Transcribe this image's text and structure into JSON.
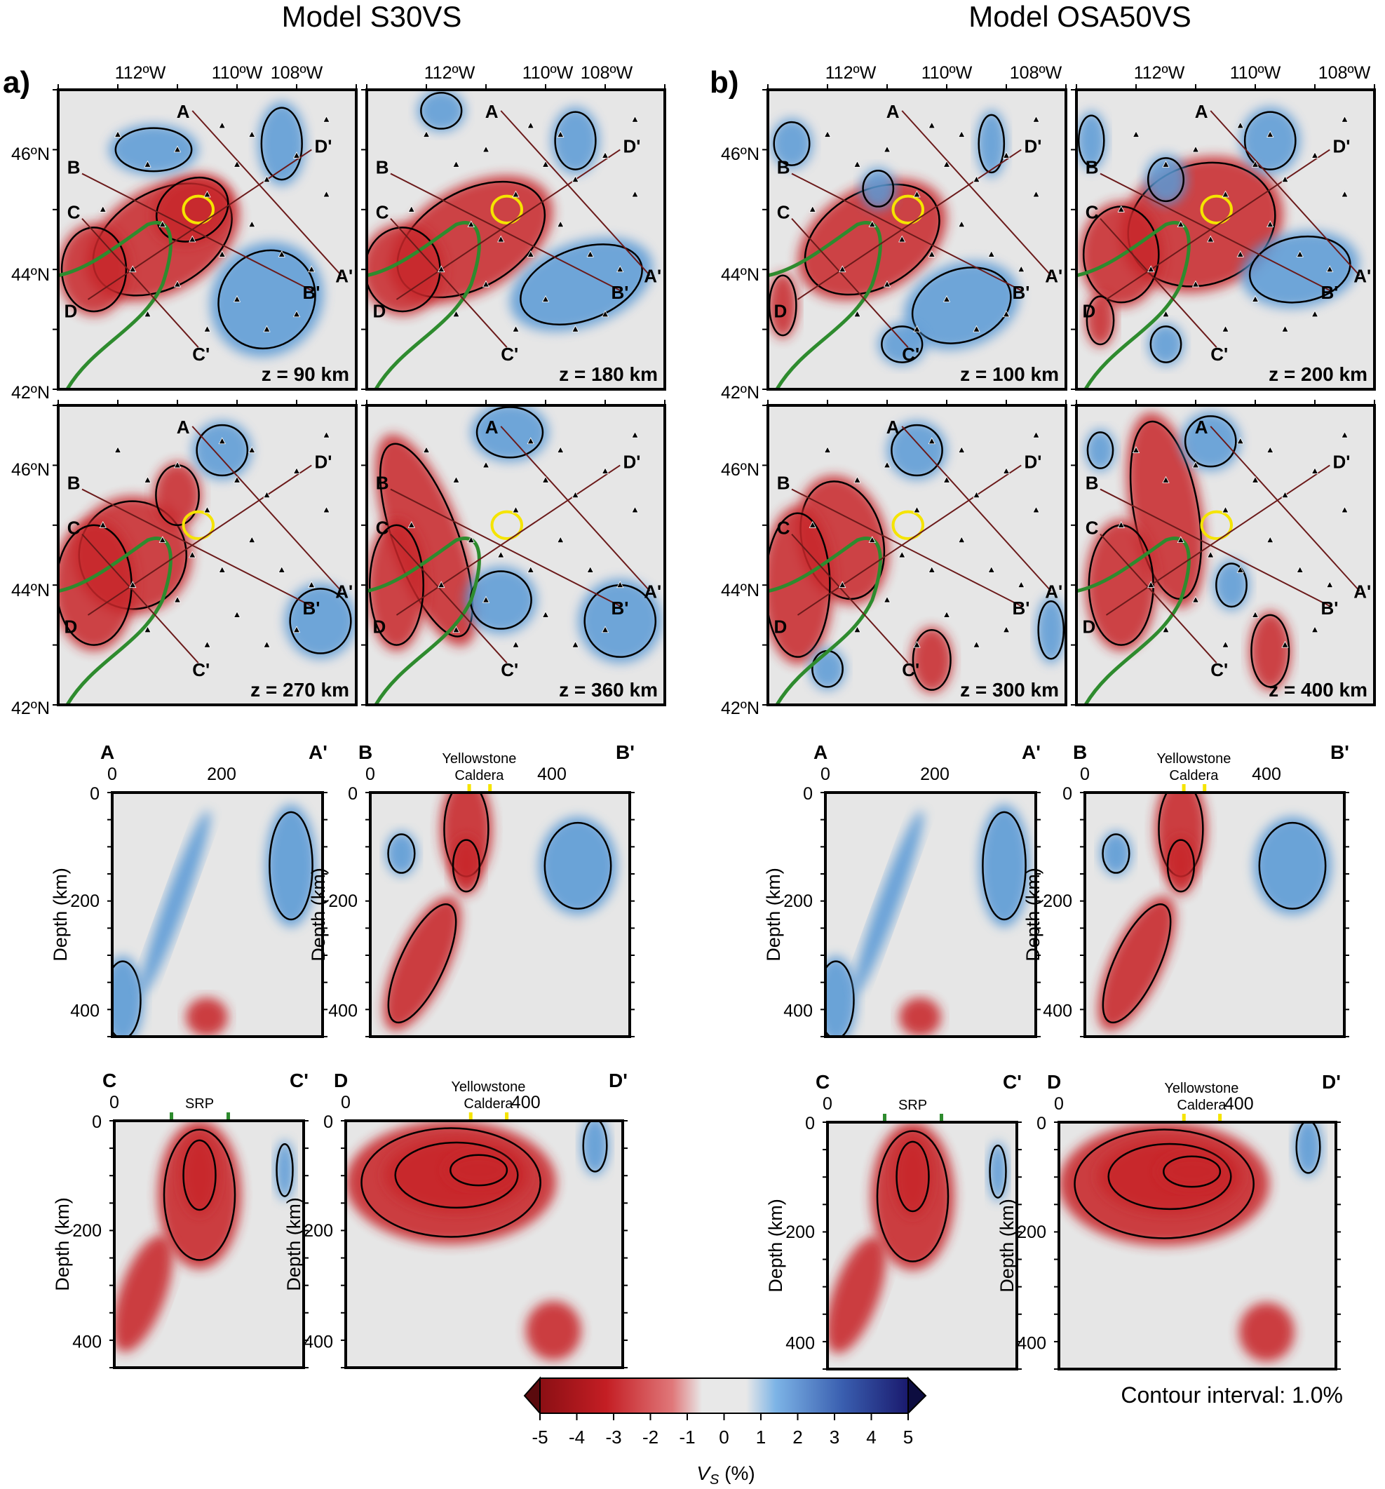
{
  "titles": {
    "left": "Model S30VS",
    "right": "Model OSA50VS"
  },
  "panel_labels": {
    "a": "a)",
    "b": "b)"
  },
  "lon_ticks": [
    "112ºW",
    "110ºW",
    "108ºW"
  ],
  "lat_ticks": [
    "46ºN",
    "44ºN",
    "42ºN"
  ],
  "map_point_labels": {
    "A": "A",
    "B": "B",
    "C": "C",
    "D": "D",
    "Ap": "A'",
    "Bp": "B'",
    "Cp": "C'",
    "Dp": "D'"
  },
  "depth_labels": {
    "s30_1": "z = 90 km",
    "s30_2": "z = 180 km",
    "s30_3": "z = 270 km",
    "s30_4": "z = 360 km",
    "osa_1": "z = 100 km",
    "osa_2": "z = 200 km",
    "osa_3": "z = 300 km",
    "osa_4": "z = 400 km"
  },
  "cross_sections": {
    "ylabel": "Depth (km)",
    "depth_ticks": [
      "0",
      "200",
      "400"
    ],
    "dist_tick_200": "200",
    "dist_tick_400": "400",
    "dist_tick_0": "0",
    "yellowstone_line1": "Yellowstone",
    "yellowstone_line2": "Caldera",
    "srp": "SRP"
  },
  "colorbar": {
    "ticks": [
      "-5",
      "-4",
      "-3",
      "-2",
      "-1",
      "0",
      "1",
      "2",
      "3",
      "4",
      "5"
    ],
    "label_main": "V",
    "label_sub": "S",
    "label_unit": " (%)",
    "contour_note": "Contour interval: 1.0%",
    "colors": {
      "slow": "#c41e24",
      "neutral": "#e4e4e4",
      "fast": "#1a1a6e"
    }
  },
  "colors": {
    "slow": "#c8282c",
    "fast": "#5a9ad6",
    "srp_boundary": "#2e8b2e",
    "caldera": "#f5e400",
    "profile_line": "#6b1a1a"
  }
}
